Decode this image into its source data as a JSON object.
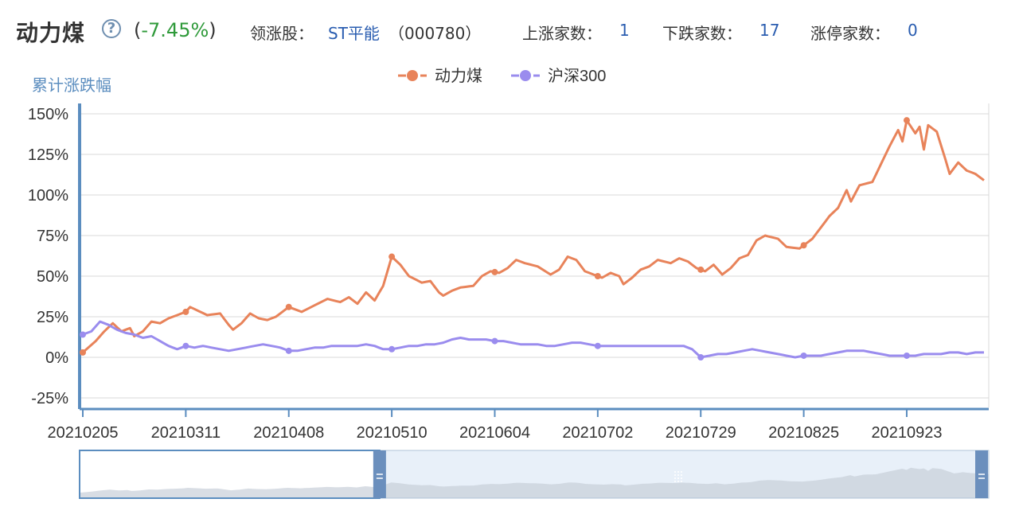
{
  "header": {
    "sector_name": "动力煤",
    "change_open": "(",
    "change_value": "-7.45%",
    "change_close": ")",
    "leader_label": "领涨股：",
    "leader_stock": "ST平能",
    "leader_code": "（000780）",
    "up_label": "上涨家数：",
    "up_count": "1",
    "down_label": "下跌家数：",
    "down_count": "17",
    "limit_label": "涨停家数：",
    "limit_count": "0"
  },
  "icons": {
    "help": "question-circle-icon",
    "handle": "drag-handle-icon"
  },
  "colors": {
    "coal": "#e8835a",
    "csi300": "#9a8cee",
    "axis": "#5b8dbf",
    "grid": "#d9d9d9",
    "leader": "#2a5db0",
    "change": "#2f9a3a"
  },
  "chart_data": {
    "type": "line",
    "ylabel": "累计涨跌幅",
    "yticks": [
      "150%",
      "125%",
      "100%",
      "75%",
      "50%",
      "25%",
      "0%",
      "-25%"
    ],
    "ytick_values": [
      150,
      125,
      100,
      75,
      50,
      25,
      0,
      -25
    ],
    "xtick_labels": [
      "20210205",
      "20210311",
      "20210408",
      "20210510",
      "20210604",
      "20210702",
      "20210729",
      "20210825",
      "20210923"
    ],
    "xtick_positions": [
      0,
      24,
      48,
      72,
      96,
      120,
      144,
      168,
      192
    ],
    "ylim": [
      -27,
      153
    ],
    "x_count": 211,
    "legend_position": "top-center",
    "series": [
      {
        "name": "动力煤",
        "keypoints": [
          [
            0,
            3
          ],
          [
            3,
            10
          ],
          [
            5,
            16
          ],
          [
            7,
            21
          ],
          [
            9,
            16
          ],
          [
            11,
            18
          ],
          [
            12,
            13
          ],
          [
            14,
            16
          ],
          [
            16,
            22
          ],
          [
            18,
            21
          ],
          [
            20,
            24
          ],
          [
            24,
            28
          ],
          [
            25,
            31
          ],
          [
            29,
            26
          ],
          [
            32,
            27
          ],
          [
            34,
            20
          ],
          [
            35,
            17
          ],
          [
            37,
            21
          ],
          [
            39,
            27
          ],
          [
            41,
            24
          ],
          [
            43,
            23
          ],
          [
            45,
            25
          ],
          [
            48,
            31
          ],
          [
            51,
            28
          ],
          [
            54,
            32
          ],
          [
            57,
            36
          ],
          [
            60,
            34
          ],
          [
            62,
            37
          ],
          [
            64,
            33
          ],
          [
            66,
            40
          ],
          [
            68,
            35
          ],
          [
            70,
            44
          ],
          [
            72,
            62
          ],
          [
            74,
            57
          ],
          [
            76,
            50
          ],
          [
            79,
            46
          ],
          [
            81,
            47
          ],
          [
            83,
            40
          ],
          [
            84,
            38
          ],
          [
            86,
            41
          ],
          [
            88,
            43
          ],
          [
            91,
            44
          ],
          [
            93,
            50
          ],
          [
            95,
            53
          ],
          [
            97,
            52
          ],
          [
            99,
            55
          ],
          [
            101,
            60
          ],
          [
            103,
            58
          ],
          [
            106,
            56
          ],
          [
            109,
            51
          ],
          [
            111,
            54
          ],
          [
            113,
            62
          ],
          [
            115,
            60
          ],
          [
            117,
            53
          ],
          [
            119,
            51
          ],
          [
            121,
            49
          ],
          [
            123,
            52
          ],
          [
            125,
            50
          ],
          [
            126,
            45
          ],
          [
            128,
            49
          ],
          [
            130,
            54
          ],
          [
            132,
            56
          ],
          [
            134,
            60
          ],
          [
            137,
            58
          ],
          [
            139,
            61
          ],
          [
            141,
            59
          ],
          [
            143,
            55
          ],
          [
            145,
            53
          ],
          [
            147,
            57
          ],
          [
            149,
            51
          ],
          [
            151,
            55
          ],
          [
            153,
            61
          ],
          [
            155,
            63
          ],
          [
            157,
            72
          ],
          [
            159,
            75
          ],
          [
            162,
            73
          ],
          [
            164,
            68
          ],
          [
            167,
            67
          ],
          [
            170,
            73
          ],
          [
            172,
            80
          ],
          [
            174,
            87
          ],
          [
            176,
            92
          ],
          [
            178,
            103
          ],
          [
            179,
            96
          ],
          [
            181,
            106
          ],
          [
            184,
            108
          ],
          [
            186,
            119
          ],
          [
            188,
            130
          ],
          [
            190,
            140
          ],
          [
            191,
            133
          ],
          [
            192,
            146
          ],
          [
            194,
            138
          ],
          [
            195,
            142
          ],
          [
            196,
            128
          ],
          [
            197,
            143
          ],
          [
            199,
            139
          ],
          [
            201,
            122
          ],
          [
            202,
            113
          ],
          [
            204,
            120
          ],
          [
            206,
            115
          ],
          [
            208,
            113
          ],
          [
            210,
            109
          ],
          [
            212,
            100
          ],
          [
            214,
            97
          ],
          [
            215,
            106
          ],
          [
            217,
            118
          ],
          [
            218,
            122
          ],
          [
            220,
            106
          ]
        ]
      },
      {
        "name": "沪深300",
        "keypoints": [
          [
            0,
            14
          ],
          [
            2,
            16
          ],
          [
            4,
            22
          ],
          [
            6,
            20
          ],
          [
            8,
            17
          ],
          [
            10,
            15
          ],
          [
            12,
            14
          ],
          [
            14,
            12
          ],
          [
            16,
            13
          ],
          [
            18,
            10
          ],
          [
            20,
            7
          ],
          [
            22,
            5
          ],
          [
            24,
            7
          ],
          [
            26,
            6
          ],
          [
            28,
            7
          ],
          [
            30,
            6
          ],
          [
            32,
            5
          ],
          [
            34,
            4
          ],
          [
            36,
            5
          ],
          [
            38,
            6
          ],
          [
            40,
            7
          ],
          [
            42,
            8
          ],
          [
            44,
            7
          ],
          [
            46,
            6
          ],
          [
            48,
            4
          ],
          [
            50,
            4
          ],
          [
            52,
            5
          ],
          [
            54,
            6
          ],
          [
            56,
            6
          ],
          [
            58,
            7
          ],
          [
            60,
            7
          ],
          [
            62,
            7
          ],
          [
            64,
            7
          ],
          [
            66,
            8
          ],
          [
            68,
            7
          ],
          [
            70,
            5
          ],
          [
            72,
            5
          ],
          [
            74,
            6
          ],
          [
            76,
            7
          ],
          [
            78,
            7
          ],
          [
            80,
            8
          ],
          [
            82,
            8
          ],
          [
            84,
            9
          ],
          [
            86,
            11
          ],
          [
            88,
            12
          ],
          [
            90,
            11
          ],
          [
            92,
            11
          ],
          [
            94,
            11
          ],
          [
            96,
            10
          ],
          [
            98,
            10
          ],
          [
            100,
            9
          ],
          [
            102,
            8
          ],
          [
            104,
            8
          ],
          [
            106,
            8
          ],
          [
            108,
            7
          ],
          [
            110,
            7
          ],
          [
            112,
            8
          ],
          [
            114,
            9
          ],
          [
            116,
            9
          ],
          [
            118,
            8
          ],
          [
            120,
            7
          ],
          [
            122,
            7
          ],
          [
            124,
            7
          ],
          [
            126,
            7
          ],
          [
            128,
            7
          ],
          [
            130,
            7
          ],
          [
            132,
            7
          ],
          [
            134,
            7
          ],
          [
            136,
            7
          ],
          [
            138,
            7
          ],
          [
            140,
            7
          ],
          [
            142,
            5
          ],
          [
            144,
            0
          ],
          [
            146,
            1
          ],
          [
            148,
            2
          ],
          [
            150,
            2
          ],
          [
            152,
            3
          ],
          [
            154,
            4
          ],
          [
            156,
            5
          ],
          [
            158,
            4
          ],
          [
            160,
            3
          ],
          [
            162,
            2
          ],
          [
            164,
            1
          ],
          [
            166,
            0
          ],
          [
            168,
            1
          ],
          [
            170,
            1
          ],
          [
            172,
            1
          ],
          [
            174,
            2
          ],
          [
            176,
            3
          ],
          [
            178,
            4
          ],
          [
            180,
            4
          ],
          [
            182,
            4
          ],
          [
            184,
            3
          ],
          [
            186,
            2
          ],
          [
            188,
            1
          ],
          [
            190,
            1
          ],
          [
            192,
            1
          ],
          [
            194,
            1
          ],
          [
            196,
            2
          ],
          [
            198,
            2
          ],
          [
            200,
            2
          ],
          [
            202,
            3
          ],
          [
            204,
            3
          ],
          [
            206,
            2
          ],
          [
            208,
            3
          ],
          [
            210,
            3
          ],
          [
            212,
            3
          ],
          [
            214,
            3
          ],
          [
            216,
            3
          ],
          [
            218,
            3
          ],
          [
            220,
            3
          ]
        ]
      }
    ],
    "navigator": {
      "selected_start": 0,
      "selected_end": 0.33
    }
  }
}
